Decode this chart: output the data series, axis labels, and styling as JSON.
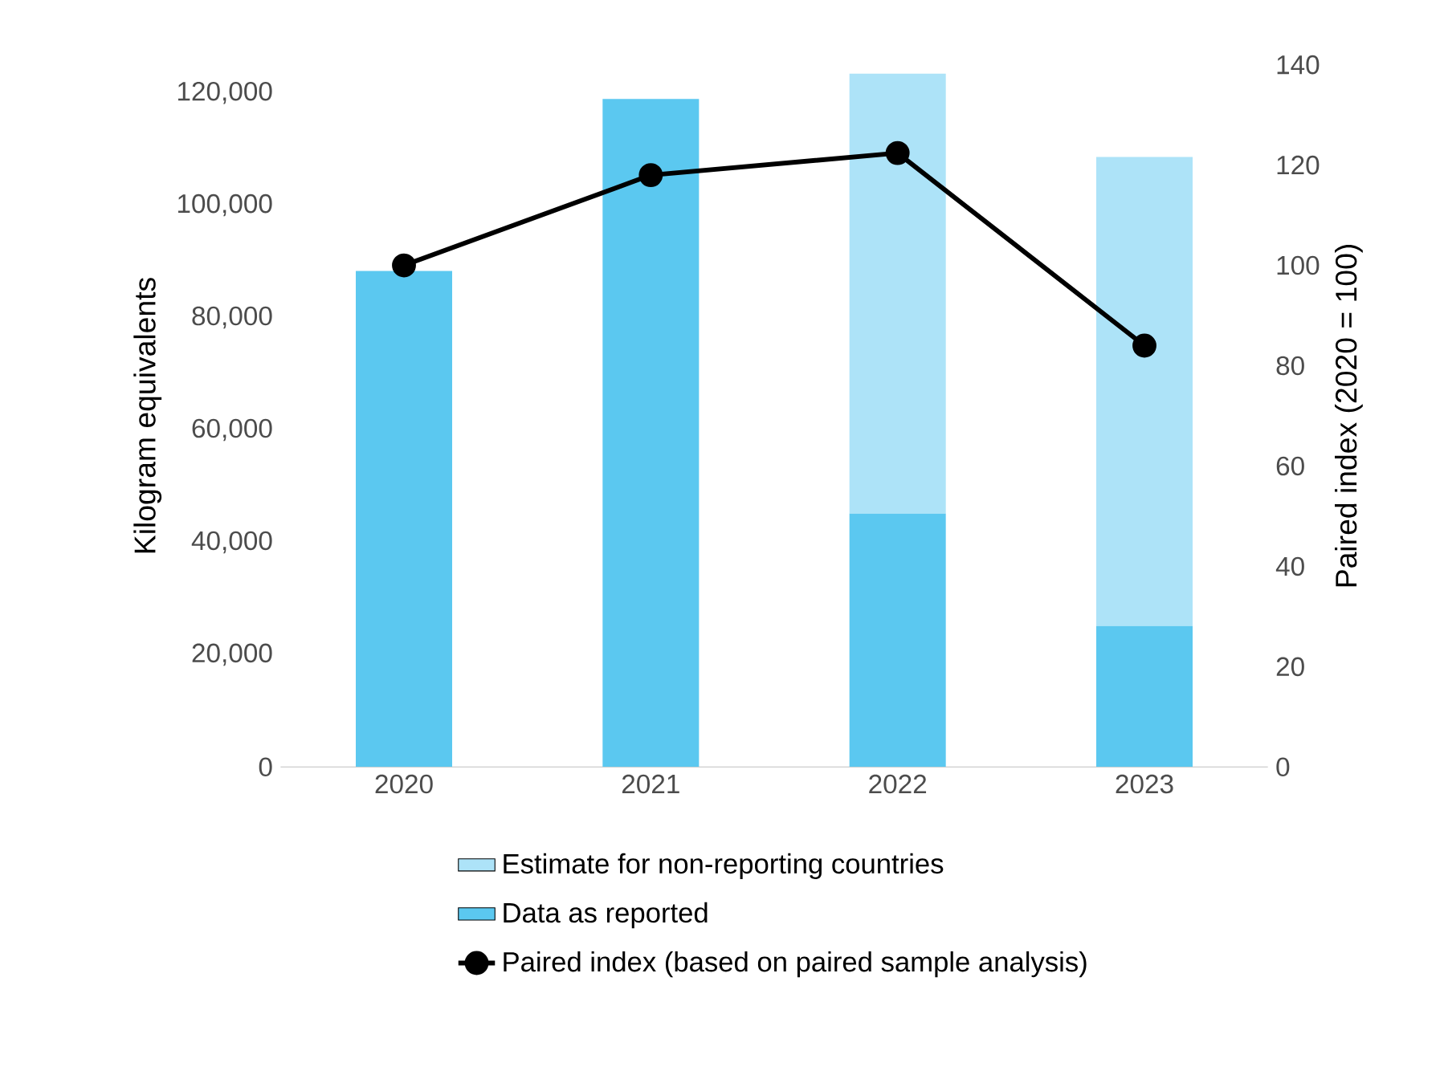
{
  "chart_data": {
    "type": "bar",
    "categories": [
      "2020",
      "2021",
      "2022",
      "2023"
    ],
    "ylabel": "Kilogram equivalents",
    "y2label": "Paired index (2020 = 100)",
    "stacked": true,
    "legend": "bottom",
    "marker": "circle",
    "line_style": "solid",
    "ylim": [
      0,
      125000
    ],
    "yticks": [
      {
        "value": 0,
        "label": "0"
      },
      {
        "value": 20000,
        "label": "20,000"
      },
      {
        "value": 40000,
        "label": "40,000"
      },
      {
        "value": 60000,
        "label": "60,000"
      },
      {
        "value": 80000,
        "label": "80,000"
      },
      {
        "value": 100000,
        "label": "100,000"
      },
      {
        "value": 120000,
        "label": "120,000"
      }
    ],
    "y2lim": [
      0,
      140
    ],
    "y2ticks": [
      0,
      20,
      40,
      60,
      80,
      100,
      120,
      140
    ],
    "series": [
      {
        "name": "Data as reported",
        "color": "#5bc8f0",
        "values": [
          88300,
          118900,
          45100,
          25100
        ]
      },
      {
        "name": "Estimate for non-reporting countries",
        "color": "#ade3f8",
        "values": [
          null,
          null,
          78300,
          83500
        ]
      },
      {
        "name": "Paired index (based on paired sample analysis)",
        "type": "line",
        "axis": "y2",
        "color": "#000000",
        "values": [
          100,
          118,
          122.4,
          84
        ]
      }
    ]
  }
}
